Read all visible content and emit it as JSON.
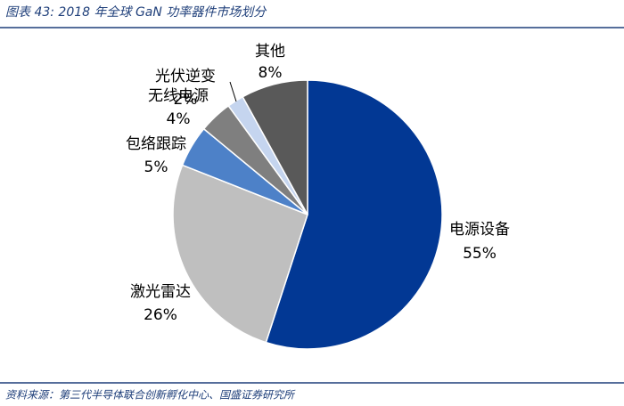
{
  "chart_data": {
    "type": "pie",
    "title": "图表 43:  2018 年全球 GaN 功率器件市场划分",
    "source": "资料来源：第三代半导体联合创新孵化中心、国盛证券研究所",
    "categories": [
      "电源设备",
      "激光雷达",
      "包络跟踪",
      "无线电源",
      "光伏逆变",
      "其他"
    ],
    "values": [
      55,
      26,
      5,
      4,
      2,
      8
    ],
    "value_labels": [
      "55%",
      "26%",
      "5%",
      "4%",
      "2%",
      "8%"
    ],
    "colors": [
      "#023894",
      "#bfbfbf",
      "#4d81c8",
      "#7f7f7f",
      "#c5d5ef",
      "#595959"
    ]
  }
}
